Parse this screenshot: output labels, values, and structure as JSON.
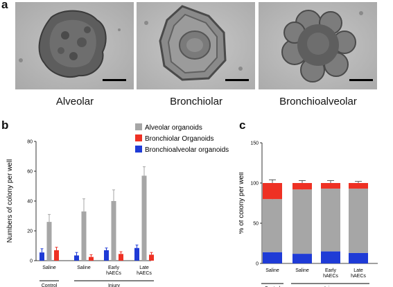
{
  "panels": {
    "a": {
      "letter": "a",
      "images": [
        {
          "caption": "Alveolar"
        },
        {
          "caption": "Bronchiolar"
        },
        {
          "caption": "Bronchioalveolar"
        }
      ]
    },
    "b": {
      "letter": "b"
    },
    "c": {
      "letter": "c"
    }
  },
  "chart_data": [
    {
      "type": "bar",
      "panel": "b",
      "ylabel": "Numbers of colony per well",
      "ylim": [
        0,
        80
      ],
      "yticks": [
        0,
        20,
        40,
        60,
        80
      ],
      "categories": [
        "Saline",
        "Saline",
        "Early hAECs",
        "Late hAECs"
      ],
      "category_lines": [
        [
          "Saline"
        ],
        [
          "Saline"
        ],
        [
          "Early",
          "hAECs"
        ],
        [
          "Late",
          "hAECs"
        ]
      ],
      "groups": [
        {
          "label": "Control",
          "categories": [
            0
          ]
        },
        {
          "label": "Injury",
          "categories": [
            1,
            2,
            3
          ]
        }
      ],
      "legend_position": "top",
      "colors": {
        "alveolar": "#a6a6a6",
        "bronchiolar": "#ee3124",
        "bronchioalveolar": "#1f3bd6"
      },
      "series": [
        {
          "name": "Bronchioalveolar organoids",
          "key": "bronchioalveolar",
          "values": [
            5.5,
            3.5,
            7,
            8.5
          ],
          "errors": [
            2.5,
            2,
            1.5,
            2
          ]
        },
        {
          "name": "Alveolar organoids",
          "key": "alveolar",
          "values": [
            26,
            33,
            40,
            57
          ],
          "errors": [
            5,
            8.5,
            7.5,
            6
          ]
        },
        {
          "name": "Bronchiolar Organoids",
          "key": "bronchiolar",
          "values": [
            7,
            2.5,
            4.5,
            4
          ],
          "errors": [
            2,
            1.5,
            1.5,
            1.5
          ]
        }
      ],
      "legend_order": [
        "alveolar",
        "bronchiolar",
        "bronchioalveolar"
      ]
    },
    {
      "type": "bar",
      "panel": "c",
      "stacked": true,
      "ylabel": "% of colony per well",
      "ylim": [
        0,
        150
      ],
      "yticks": [
        0,
        50,
        100,
        150
      ],
      "categories": [
        "Saline",
        "Saline",
        "Early hAECs",
        "Late hAECs"
      ],
      "category_lines": [
        [
          "Saline"
        ],
        [
          "Saline"
        ],
        [
          "Early",
          "hAECs"
        ],
        [
          "Late",
          "hAECs"
        ]
      ],
      "groups": [
        {
          "label": "Control",
          "categories": [
            0
          ]
        },
        {
          "label": "Injury",
          "categories": [
            1,
            2,
            3
          ]
        }
      ],
      "colors": {
        "alveolar": "#a6a6a6",
        "bronchiolar": "#ee3124",
        "bronchioalveolar": "#1f3bd6"
      },
      "series": [
        {
          "name": "Bronchioalveolar organoids",
          "key": "bronchioalveolar",
          "values": [
            14,
            12,
            15,
            13
          ],
          "errors": [
            3,
            3,
            2,
            3
          ]
        },
        {
          "name": "Alveolar organoids",
          "key": "alveolar",
          "values": [
            66,
            80,
            78,
            80
          ],
          "errors": [
            4,
            2,
            3,
            2
          ]
        },
        {
          "name": "Bronchiolar Organoids",
          "key": "bronchiolar",
          "values": [
            20,
            8,
            7,
            7
          ],
          "errors": [
            4,
            3,
            3,
            2
          ]
        }
      ]
    }
  ]
}
